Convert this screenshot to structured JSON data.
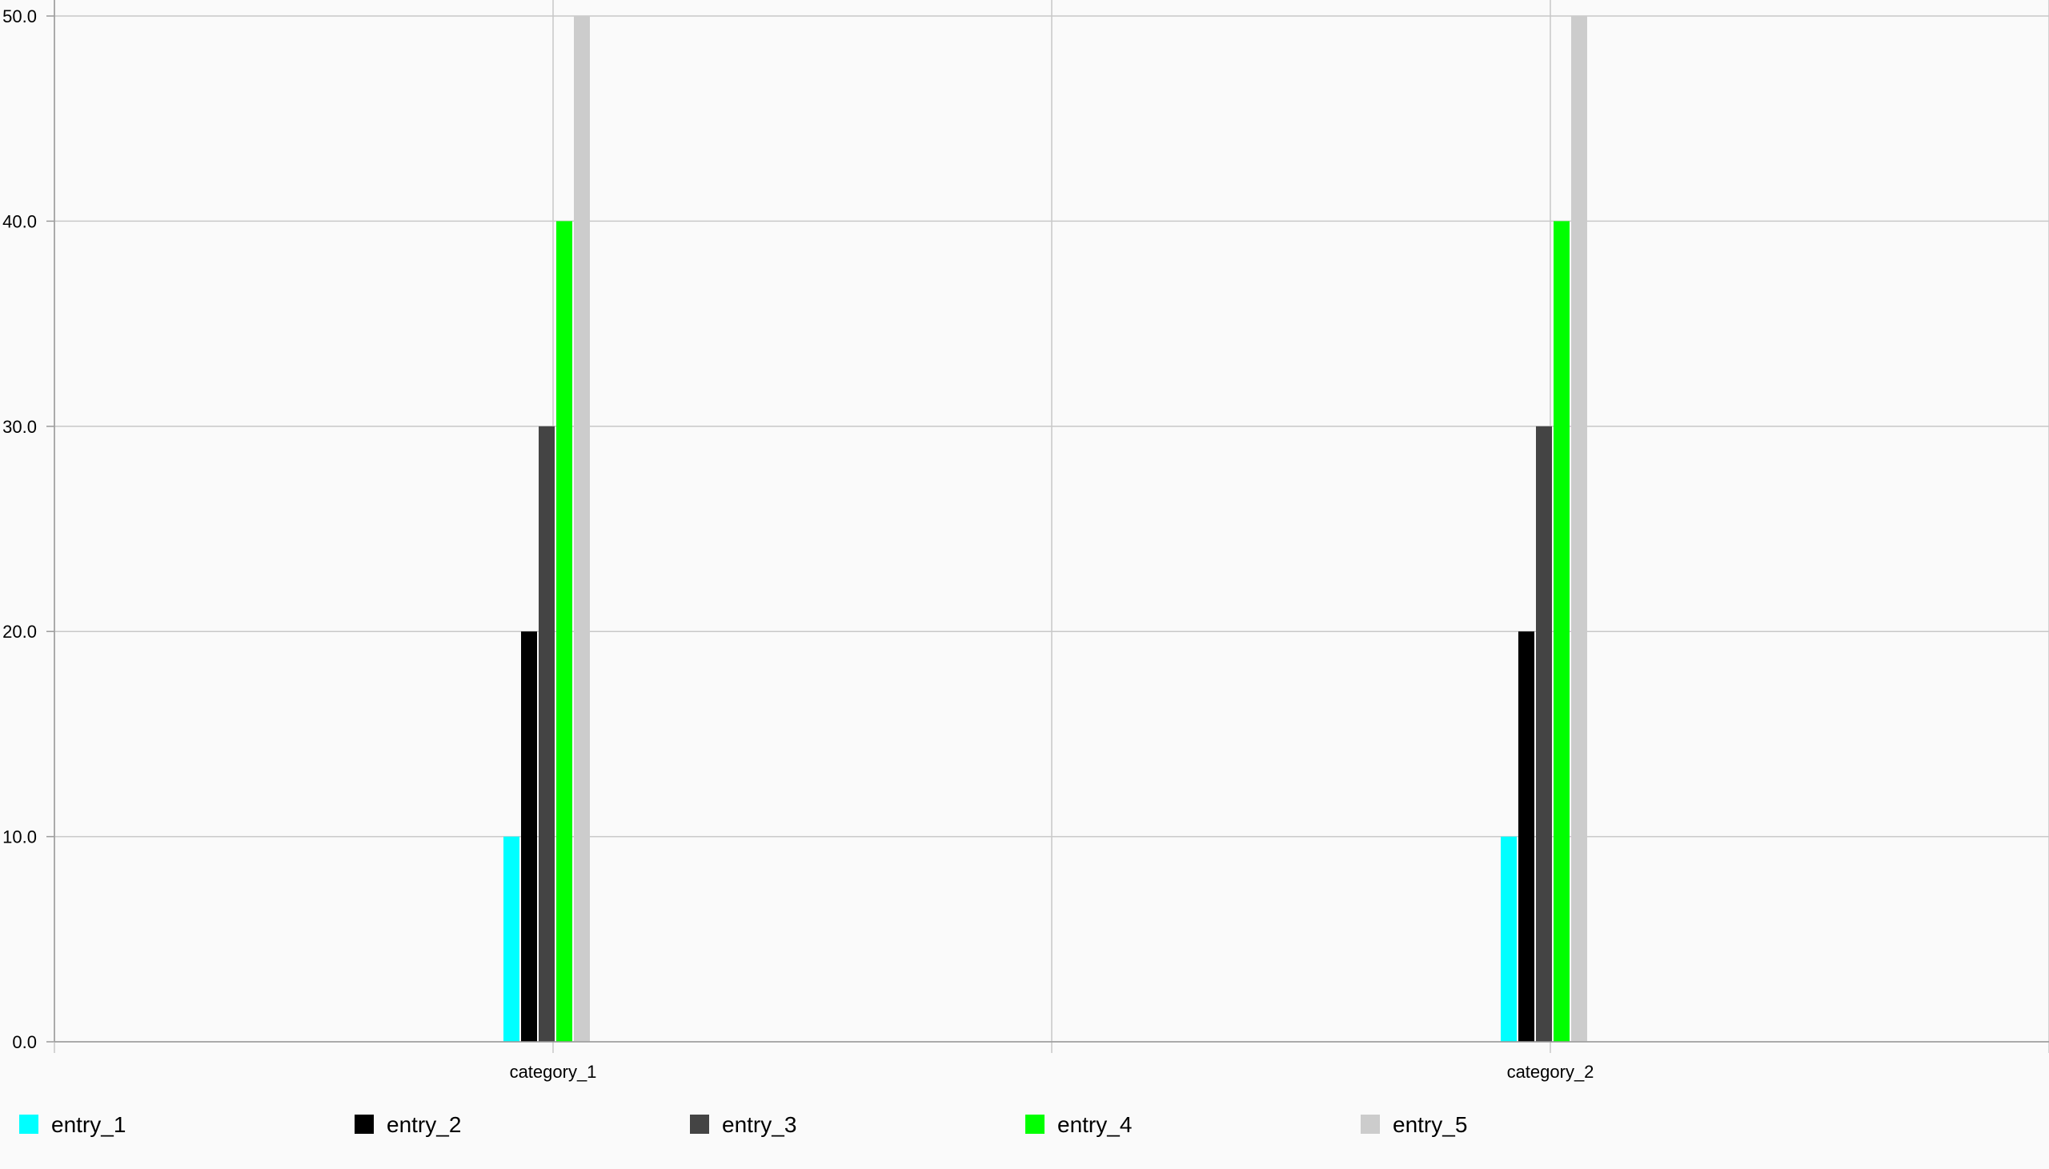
{
  "chart_data": {
    "type": "bar",
    "title": "",
    "xlabel": "",
    "ylabel": "",
    "ylim": [
      0,
      50
    ],
    "y_ticks": [
      0,
      10,
      20,
      30,
      40,
      50
    ],
    "y_tick_labels": [
      "0.0",
      "10.0",
      "20.0",
      "30.0",
      "40.0",
      "50.0"
    ],
    "categories": [
      "category_1",
      "category_2"
    ],
    "series": [
      {
        "name": "entry_1",
        "color": "#00FFFF",
        "values": [
          10,
          10
        ]
      },
      {
        "name": "entry_2",
        "color": "#000000",
        "values": [
          20,
          20
        ]
      },
      {
        "name": "entry_3",
        "color": "#444444",
        "values": [
          30,
          30
        ]
      },
      {
        "name": "entry_4",
        "color": "#00FF00",
        "values": [
          40,
          40
        ]
      },
      {
        "name": "entry_5",
        "color": "#CCCCCC",
        "values": [
          50,
          50
        ]
      }
    ],
    "grid": true,
    "legend_position": "bottom-left",
    "background_color": "#FAFAFA",
    "grid_color": "#C8C8C8"
  }
}
